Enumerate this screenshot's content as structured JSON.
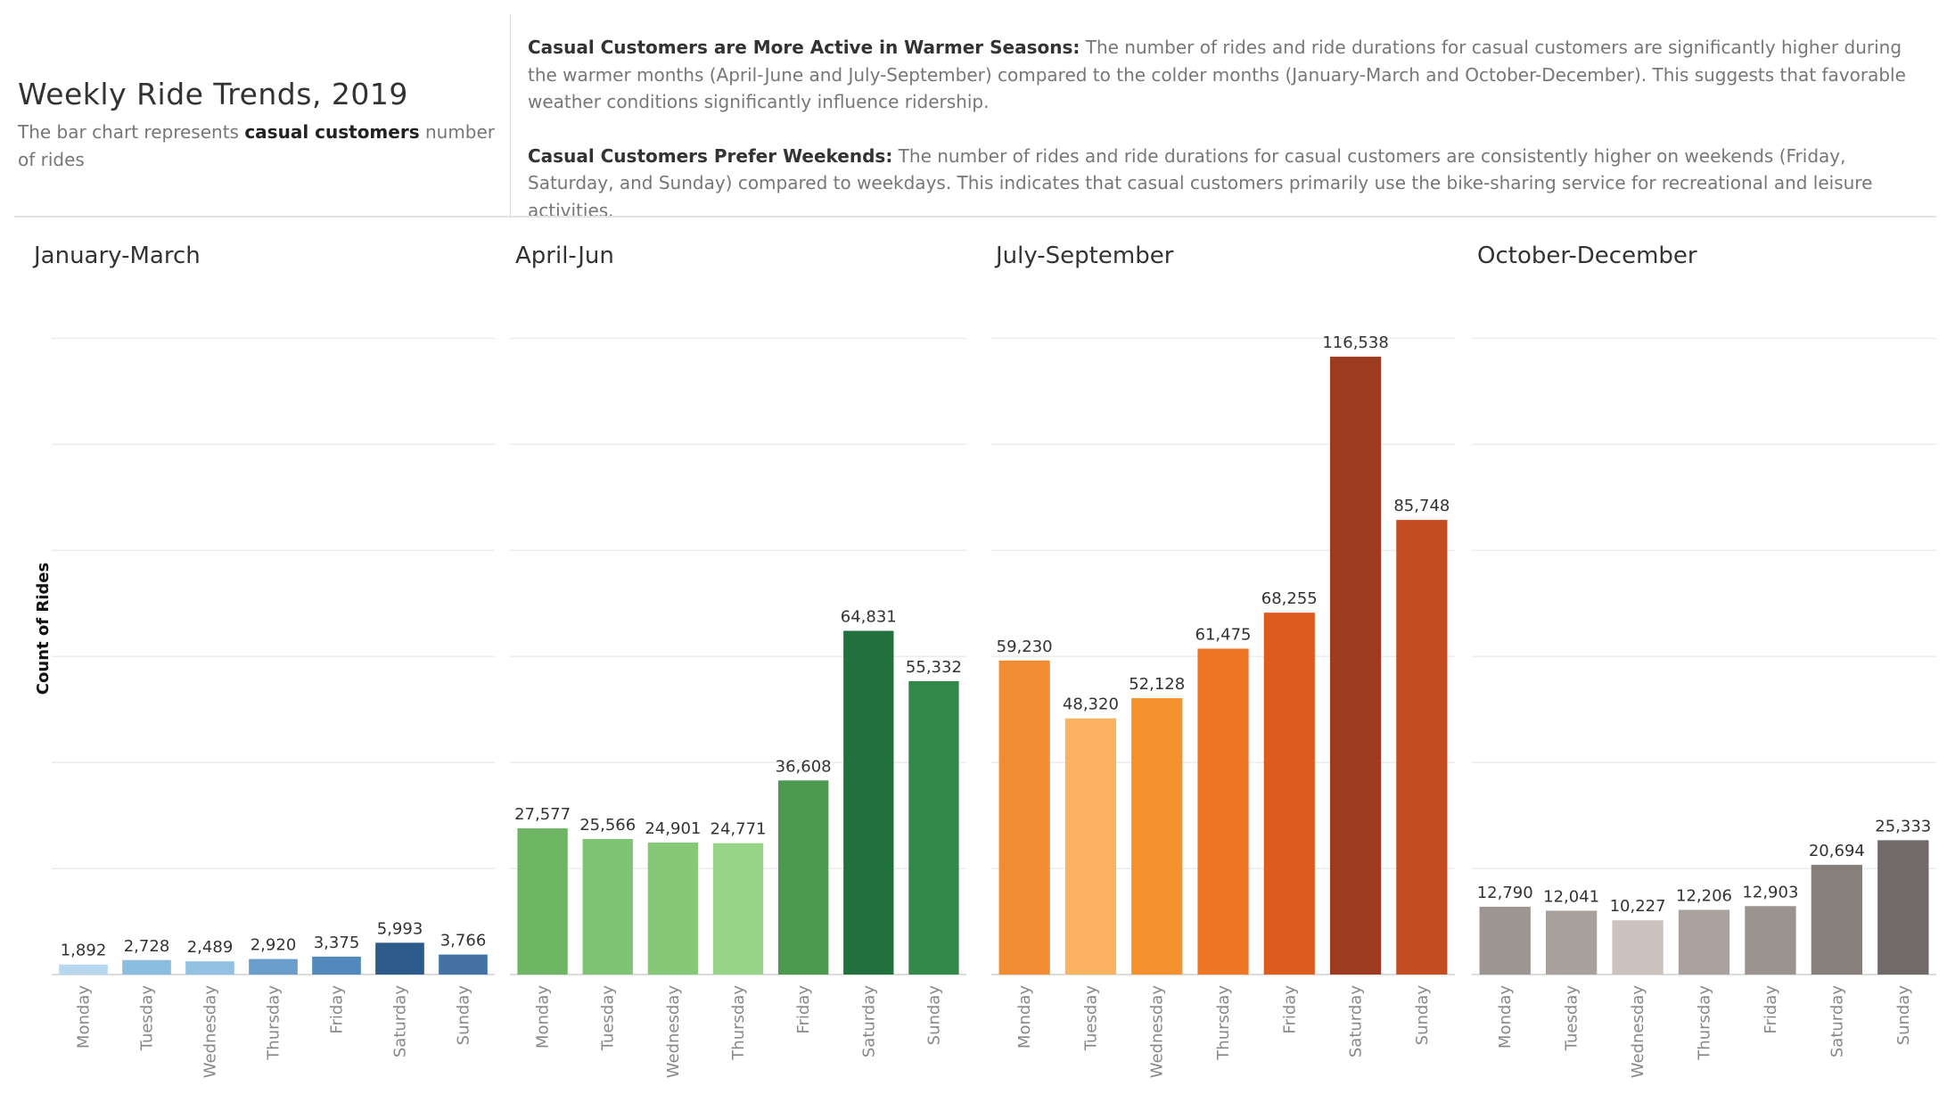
{
  "header": {
    "title": "Weekly Ride Trends, 2019",
    "subtitle_pre": "The bar chart represents ",
    "subtitle_bold": "casual customers",
    "subtitle_post": " number of rides",
    "insights": [
      {
        "heading": "Casual Customers are More Active in Warmer Seasons:",
        "text": " The number of rides and ride durations for casual customers are significantly higher during the warmer months (April-June and July-September) compared to the colder months (January-March and October-December). This suggests that favorable weather conditions significantly influence ridership."
      },
      {
        "heading": "Casual Customers Prefer Weekends:",
        "text": " The number of rides and ride durations for casual customers are consistently higher on weekends (Friday, Saturday, and Sunday) compared to weekdays. This indicates that casual customers primarily use the bike-sharing service for recreational and leisure activities."
      }
    ]
  },
  "chart_data": {
    "type": "bar",
    "ylabel": "Count of Rides",
    "ylim": [
      0,
      130000
    ],
    "grid": true,
    "categories": [
      "Monday",
      "Tuesday",
      "Wednesday",
      "Thursday",
      "Friday",
      "Saturday",
      "Sunday"
    ],
    "panels": [
      {
        "title": "January-March",
        "values": [
          1892,
          2728,
          2489,
          2920,
          3375,
          5993,
          3766
        ],
        "labels": [
          "1,892",
          "2,728",
          "2,489",
          "2,920",
          "3,375",
          "5,993",
          "3,766"
        ],
        "colors": [
          "#b7d7ef",
          "#8bbde0",
          "#93c1e1",
          "#6a9dca",
          "#5189bd",
          "#2c5a8a",
          "#4472a6"
        ]
      },
      {
        "title": "April-Jun",
        "values": [
          27577,
          25566,
          24901,
          24771,
          36608,
          64831,
          55332
        ],
        "labels": [
          "27,577",
          "25,566",
          "24,901",
          "24,771",
          "36,608",
          "64,831",
          "55,332"
        ],
        "colors": [
          "#6db563",
          "#7fc474",
          "#85c978",
          "#98d487",
          "#4b9a50",
          "#22703d",
          "#328848"
        ]
      },
      {
        "title": "July-September",
        "values": [
          59230,
          48320,
          52128,
          61475,
          68255,
          116538,
          85748
        ],
        "labels": [
          "59,230",
          "48,320",
          "52,128",
          "61,475",
          "68,255",
          "116,538",
          "85,748"
        ],
        "colors": [
          "#f28c33",
          "#fbb362",
          "#f5922f",
          "#ef7624",
          "#de5b1e",
          "#9c3b20",
          "#c34d21"
        ]
      },
      {
        "title": "October-December",
        "values": [
          12790,
          12041,
          10227,
          12206,
          12903,
          20694,
          25333
        ],
        "labels": [
          "12,790",
          "12,041",
          "10,227",
          "12,206",
          "12,903",
          "20,694",
          "25,333"
        ],
        "colors": [
          "#9d9592",
          "#a8a09d",
          "#cbc2be",
          "#aaa19e",
          "#9b9390",
          "#877f7c",
          "#716a68"
        ]
      }
    ]
  }
}
